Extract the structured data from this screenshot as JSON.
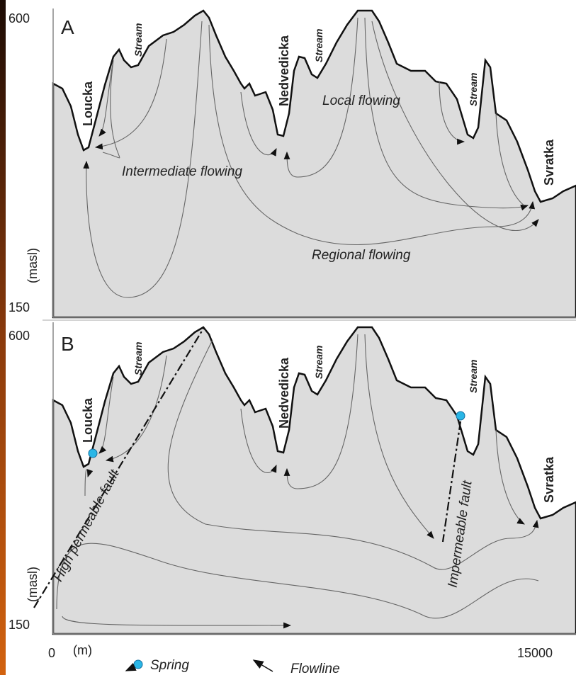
{
  "panels": [
    {
      "label": "A",
      "y_max": 600,
      "y_min": 150,
      "y_axis_label": "(masl)",
      "streams": [
        "Stream",
        "Stream",
        "Stream"
      ],
      "rivers": [
        "Loucka",
        "Nedvedicka",
        "Svratka"
      ],
      "flows": [
        "Local flowing",
        "Intermediate flowing",
        "Regional flowing"
      ]
    },
    {
      "label": "B",
      "y_max": 600,
      "y_min": 150,
      "y_axis_label": "(masl)",
      "streams": [
        "Stream",
        "Stream",
        "Stream"
      ],
      "rivers": [
        "Loucka",
        "Nedvedicka",
        "Svratka"
      ],
      "faults": [
        "High permeable fault",
        "Impermeable fault"
      ]
    }
  ],
  "x_axis": {
    "min": 0,
    "unit": "(m)",
    "max": 15000
  },
  "legend": [
    "Spring",
    "Flowline"
  ]
}
